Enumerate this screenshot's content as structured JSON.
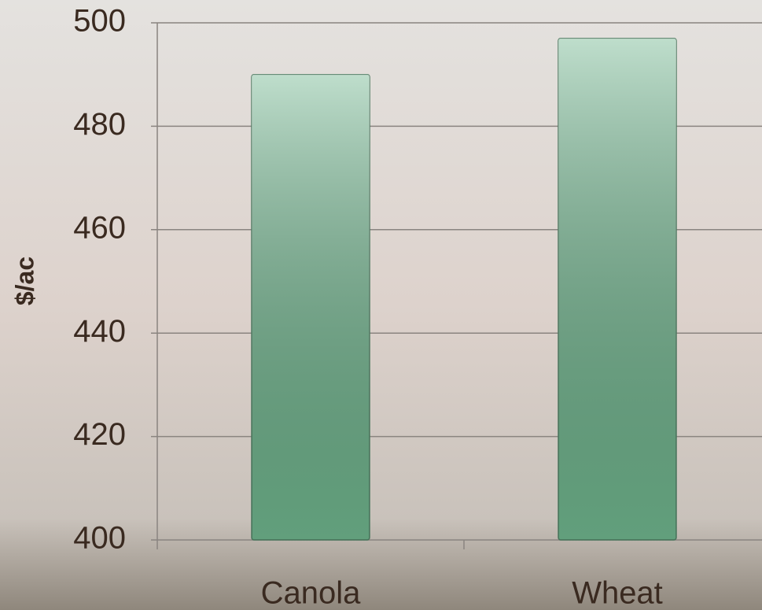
{
  "chart_data": {
    "type": "bar",
    "y_label": "$/ac",
    "categories": [
      "Canola",
      "Wheat"
    ],
    "values": [
      490,
      497
    ],
    "color": "#6fb58d",
    "ylim": [
      400,
      500
    ],
    "yticks": [
      400,
      420,
      440,
      460,
      480,
      500
    ],
    "grid": true
  }
}
